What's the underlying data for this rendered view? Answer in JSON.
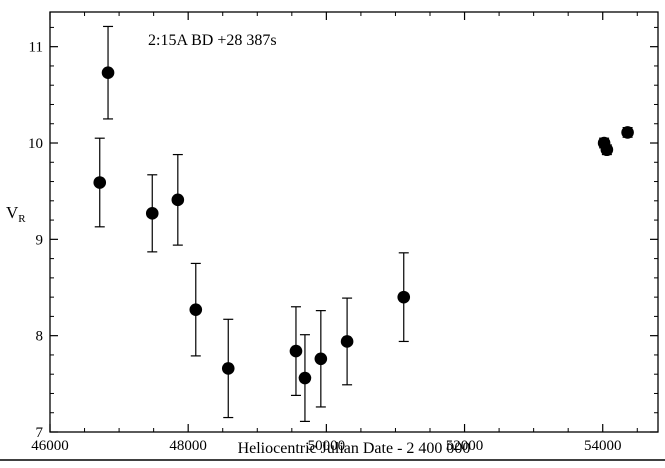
{
  "chart_data": {
    "type": "scatter",
    "title": "2:15A   BD +28 387s",
    "xlabel": "Heliocentric Julian Date - 2 400 000",
    "ylabel_main": "V",
    "ylabel_sub": "R",
    "xlim": [
      46000,
      54800
    ],
    "ylim": [
      7,
      11.36
    ],
    "xticks_major": [
      46000,
      48000,
      50000,
      52000,
      54000
    ],
    "xtick_minor_step": 500,
    "yticks_major": [
      7,
      8,
      9,
      10,
      11
    ],
    "ytick_minor_step": 0.2,
    "grid": false,
    "legend": "none",
    "marker_color": "#000000",
    "points": [
      {
        "x": 46720,
        "y": 9.59,
        "err": 0.46
      },
      {
        "x": 46840,
        "y": 10.73,
        "err": 0.48
      },
      {
        "x": 47480,
        "y": 9.27,
        "err": 0.4
      },
      {
        "x": 47850,
        "y": 9.41,
        "err": 0.47
      },
      {
        "x": 48110,
        "y": 8.27,
        "err": 0.48
      },
      {
        "x": 48580,
        "y": 7.66,
        "err": 0.51
      },
      {
        "x": 49560,
        "y": 7.84,
        "err": 0.46
      },
      {
        "x": 49690,
        "y": 7.56,
        "err": 0.45
      },
      {
        "x": 49920,
        "y": 7.76,
        "err": 0.5
      },
      {
        "x": 50300,
        "y": 7.94,
        "err": 0.45
      },
      {
        "x": 51120,
        "y": 8.4,
        "err": 0.46
      },
      {
        "x": 54020,
        "y": 10.0,
        "err": 0.05
      },
      {
        "x": 54060,
        "y": 9.93,
        "err": 0.05
      },
      {
        "x": 54360,
        "y": 10.11,
        "err": 0.05
      }
    ]
  }
}
